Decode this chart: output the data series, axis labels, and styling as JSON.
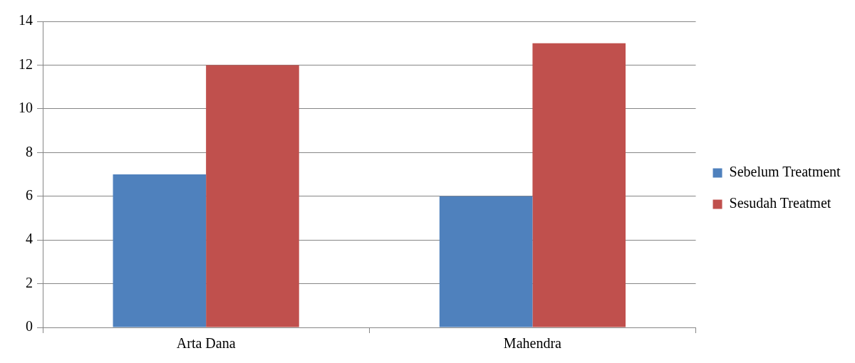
{
  "chart_data": {
    "type": "bar",
    "categories": [
      "Arta Dana",
      "Mahendra"
    ],
    "series": [
      {
        "name": "Sebelum Treatment",
        "color": "#4f81bd",
        "values": [
          7,
          6
        ]
      },
      {
        "name": "Sesudah Treatmet",
        "color": "#c0504d",
        "values": [
          12,
          13
        ]
      }
    ],
    "ylim": [
      0,
      14
    ],
    "yticks": [
      0,
      2,
      4,
      6,
      8,
      10,
      12,
      14
    ],
    "grid": "y",
    "legend": "right"
  }
}
